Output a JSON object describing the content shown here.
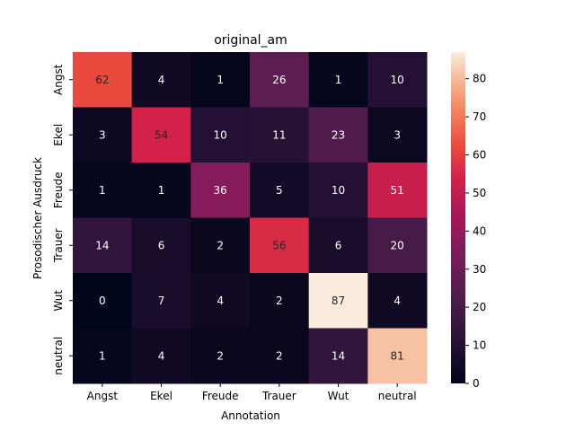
{
  "chart_data": {
    "type": "heatmap",
    "title": "original_am",
    "xlabel": "Annotation",
    "ylabel": "Prosodischer Ausdruck",
    "x_categories": [
      "Angst",
      "Ekel",
      "Freude",
      "Trauer",
      "Wut",
      "neutral"
    ],
    "y_categories": [
      "Angst",
      "Ekel",
      "Freude",
      "Trauer",
      "Wut",
      "neutral"
    ],
    "values": [
      [
        62,
        4,
        1,
        26,
        1,
        10
      ],
      [
        3,
        54,
        10,
        11,
        23,
        3
      ],
      [
        1,
        1,
        36,
        5,
        10,
        51
      ],
      [
        14,
        6,
        2,
        56,
        6,
        20
      ],
      [
        0,
        7,
        4,
        2,
        87,
        4
      ],
      [
        1,
        4,
        2,
        2,
        14,
        81
      ]
    ],
    "colorbar": {
      "range": [
        0,
        87
      ],
      "ticks": [
        0,
        10,
        20,
        30,
        40,
        50,
        60,
        70,
        80
      ],
      "colormap": "rocket"
    },
    "annotations": true
  }
}
